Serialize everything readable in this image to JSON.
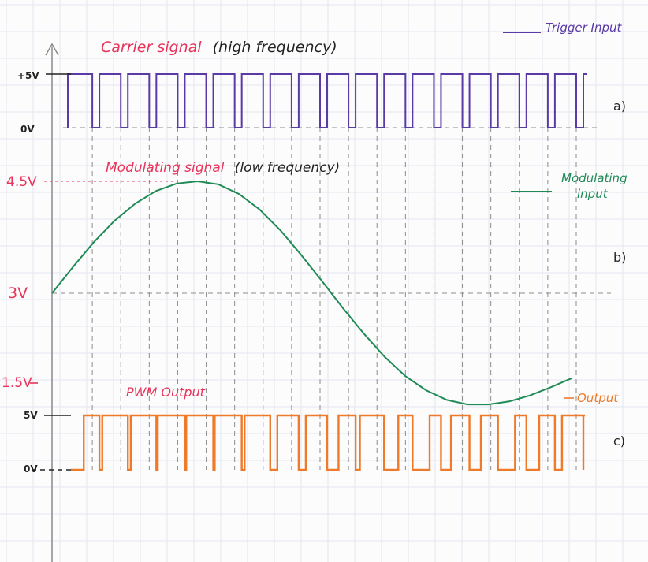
{
  "colors": {
    "carrier": "#5a3aa6",
    "modulating": "#1f8a55",
    "output": "#ef7a2a",
    "red_text": "#e8335a",
    "black_text": "#222222",
    "axis": "#8a8a8a",
    "grid": "#e3e6ee",
    "dashed": "#8c8c8c"
  },
  "titles": {
    "carrier_red": "Carrier signal",
    "carrier_black": "(high frequency)",
    "modulating_red": "Modulating signal",
    "modulating_black": "(low frequency)",
    "pwm": "PWM Output"
  },
  "legend": {
    "trigger": "Trigger Input",
    "modulating_line1": "Modulating",
    "modulating_line2": "input",
    "output": "Output"
  },
  "panel_labels": {
    "a": "a)",
    "b": "b)",
    "c": "c)"
  },
  "levels": {
    "carrier_high": "+5V",
    "carrier_low": "0V",
    "mod_peak": "4.5V",
    "mod_mid": "3V",
    "mod_trough": "1.5V",
    "out_high": "5V",
    "out_low": "0V"
  },
  "chart_data": {
    "type": "line",
    "carrier": {
      "pulses": 18,
      "high": 5,
      "low": 0
    },
    "modulating": {
      "mid": 3,
      "peak": 4.5,
      "trough": 1.5,
      "x": [
        0.0,
        0.04,
        0.08,
        0.12,
        0.16,
        0.2,
        0.24,
        0.28,
        0.32,
        0.36,
        0.4,
        0.44,
        0.48,
        0.52,
        0.56,
        0.6,
        0.64,
        0.68,
        0.72,
        0.76,
        0.8,
        0.84,
        0.88,
        0.92,
        0.96,
        1.0
      ],
      "y": [
        3.0,
        3.35,
        3.68,
        3.97,
        4.2,
        4.37,
        4.47,
        4.5,
        4.46,
        4.33,
        4.12,
        3.84,
        3.51,
        3.16,
        2.8,
        2.46,
        2.15,
        1.89,
        1.7,
        1.57,
        1.51,
        1.51,
        1.55,
        1.63,
        1.74,
        1.86
      ]
    },
    "pwm_duty": [
      0.55,
      0.9,
      0.9,
      0.95,
      0.95,
      0.95,
      0.9,
      0.75,
      0.75,
      0.6,
      0.85,
      0.5,
      0.4,
      0.65,
      0.6,
      0.4,
      0.55,
      0.75
    ],
    "output_high": 5,
    "output_low": 0
  }
}
